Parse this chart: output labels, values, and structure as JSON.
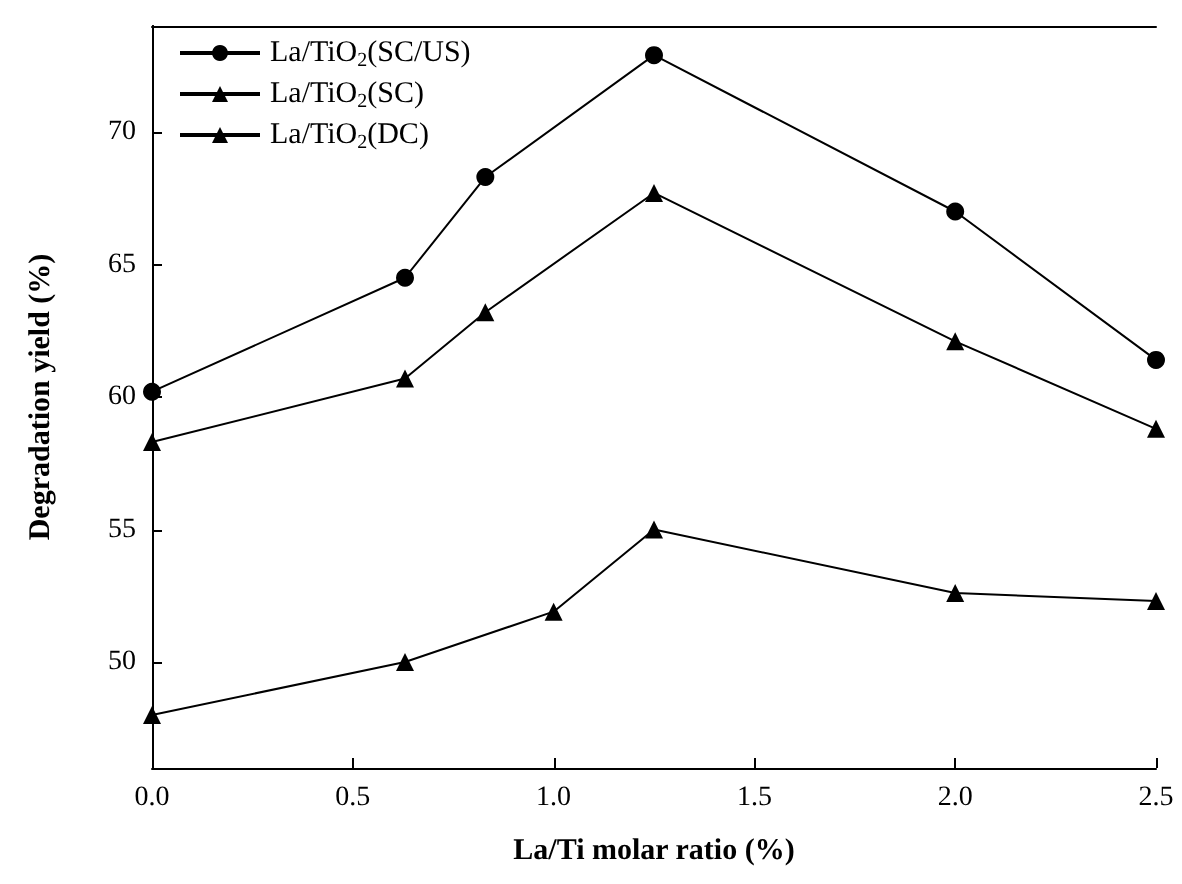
{
  "chart_data": {
    "type": "line",
    "xlabel": "La/Ti molar ratio (%)",
    "ylabel": "Degradation yield (%)",
    "xlim": [
      0,
      2.5
    ],
    "xticks": [
      {
        "value": 0,
        "label": "0.0"
      },
      {
        "value": 0.5,
        "label": "0.5"
      },
      {
        "value": 1,
        "label": "1.0"
      },
      {
        "value": 1.5,
        "label": "1.5"
      },
      {
        "value": 2,
        "label": "2.0"
      },
      {
        "value": 2.5,
        "label": "2.5"
      }
    ],
    "ylim": [
      46,
      74
    ],
    "yticks": [
      50,
      55,
      60,
      65,
      70
    ],
    "grid": false,
    "legend": "top left",
    "line_style": "solid",
    "series": [
      {
        "name": "La/TiO$_{2}$(SC/US)",
        "color": "#000000",
        "marker": "circle",
        "x": [
          0,
          0.63,
          0.83,
          1.25,
          2.0,
          2.5
        ],
        "values": [
          60.2,
          64.5,
          68.3,
          72.9,
          67.0,
          61.4
        ]
      },
      {
        "name": "La/TiO$_{2}$(SC)",
        "color": "#000000",
        "marker": "triangle",
        "x": [
          0,
          0.63,
          0.83,
          1.25,
          2.0,
          2.5
        ],
        "values": [
          58.3,
          60.7,
          63.2,
          67.7,
          62.1,
          58.8
        ]
      },
      {
        "name": "La/TiO$_{2}$(DC)",
        "color": "#000000",
        "marker": "triangle",
        "x": [
          0,
          0.63,
          1.0,
          1.25,
          2.0,
          2.5
        ],
        "values": [
          48.0,
          50.0,
          51.9,
          55.0,
          52.6,
          52.3
        ]
      }
    ]
  }
}
